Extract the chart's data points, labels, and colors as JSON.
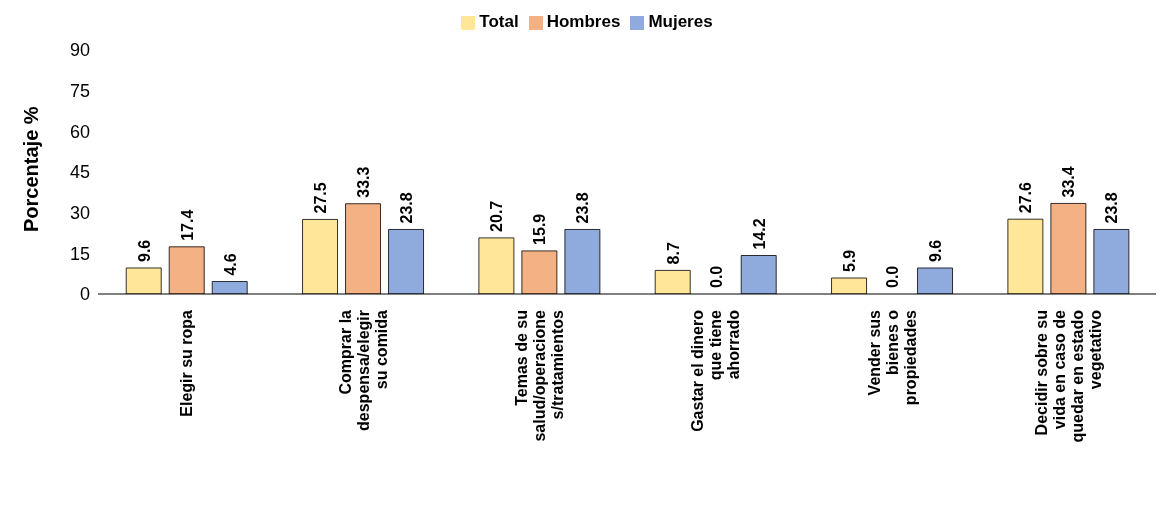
{
  "chart_data": {
    "type": "bar",
    "ylabel": "Porcentaje %",
    "categories": [
      "Elegir su ropa",
      "Comprar la despensa/elegir su comida",
      "Temas de su salud/operaciones/tratamientos",
      "Gastar el dinero que tiene ahorrado",
      "Vender sus bienes o propiedades",
      "Decidir sobre su vida en caso de quedar en estado vegetativo"
    ],
    "series": [
      {
        "name": "Total",
        "color": "#ffe699",
        "values": [
          9.6,
          27.5,
          20.7,
          8.7,
          5.9,
          27.6
        ],
        "value_labels": [
          "9.6",
          "27.5",
          "20.7",
          "8.7",
          "5.9",
          "27.6"
        ]
      },
      {
        "name": "Hombres",
        "color": "#f4b183",
        "values": [
          17.4,
          33.3,
          15.9,
          0,
          0,
          33.4
        ],
        "value_labels": [
          "17.4",
          "33.3",
          "15.9",
          "0.0",
          "0.0",
          "33.4"
        ]
      },
      {
        "name": "Mujeres",
        "color": "#8faadc",
        "values": [
          4.6,
          23.8,
          23.8,
          14.2,
          9.6,
          23.8
        ],
        "value_labels": [
          "4.6",
          "23.8",
          "23.8",
          "14.2",
          "9.6",
          "23.8"
        ]
      }
    ],
    "ylim": [
      0,
      90
    ],
    "yticks": [
      0,
      15,
      30,
      45,
      60,
      75,
      90
    ],
    "grid": false,
    "legend": "top"
  }
}
